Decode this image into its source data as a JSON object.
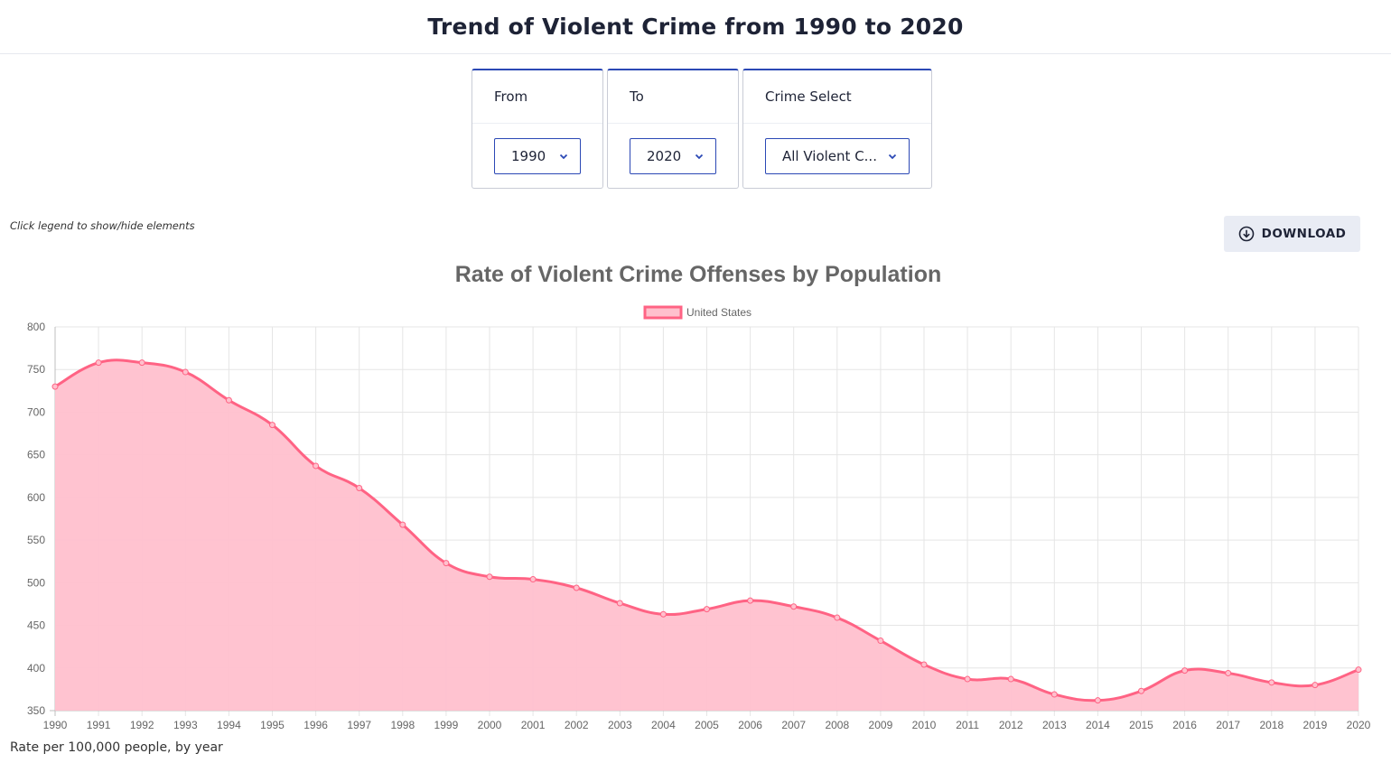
{
  "header": {
    "title": "Trend of Violent Crime from 1990 to 2020"
  },
  "filters": {
    "from": {
      "label": "From",
      "value": "1990"
    },
    "to": {
      "label": "To",
      "value": "2020"
    },
    "crime": {
      "label": "Crime Select",
      "value": "All Violent C..."
    }
  },
  "hint": "Click legend to show/hide elements",
  "download": {
    "label": "DOWNLOAD",
    "icon": "download-circle-icon"
  },
  "footnote": "Rate per 100,000 people, by year",
  "colors": {
    "accent": "#2b48b5",
    "series_line": "#ff6384",
    "series_fill": "#ffc0cd"
  },
  "chart_data": {
    "type": "area",
    "title": "Rate of Violent Crime Offenses by Population",
    "xlabel": "",
    "ylabel": "",
    "x": [
      "1990",
      "1991",
      "1992",
      "1993",
      "1994",
      "1995",
      "1996",
      "1997",
      "1998",
      "1999",
      "2000",
      "2001",
      "2002",
      "2003",
      "2004",
      "2005",
      "2006",
      "2007",
      "2008",
      "2009",
      "2010",
      "2011",
      "2012",
      "2013",
      "2014",
      "2015",
      "2016",
      "2017",
      "2018",
      "2019",
      "2020"
    ],
    "series": [
      {
        "name": "United States",
        "values": [
          730,
          758,
          758,
          747,
          714,
          685,
          637,
          611,
          568,
          523,
          507,
          504,
          494,
          476,
          463,
          469,
          479,
          472,
          459,
          432,
          404,
          387,
          387,
          369,
          362,
          373,
          397,
          394,
          383,
          380,
          398
        ]
      }
    ],
    "ylim": [
      350,
      800
    ],
    "yticks": [
      350,
      400,
      450,
      500,
      550,
      600,
      650,
      700,
      750,
      800
    ],
    "grid": true,
    "legend": "top-center"
  }
}
